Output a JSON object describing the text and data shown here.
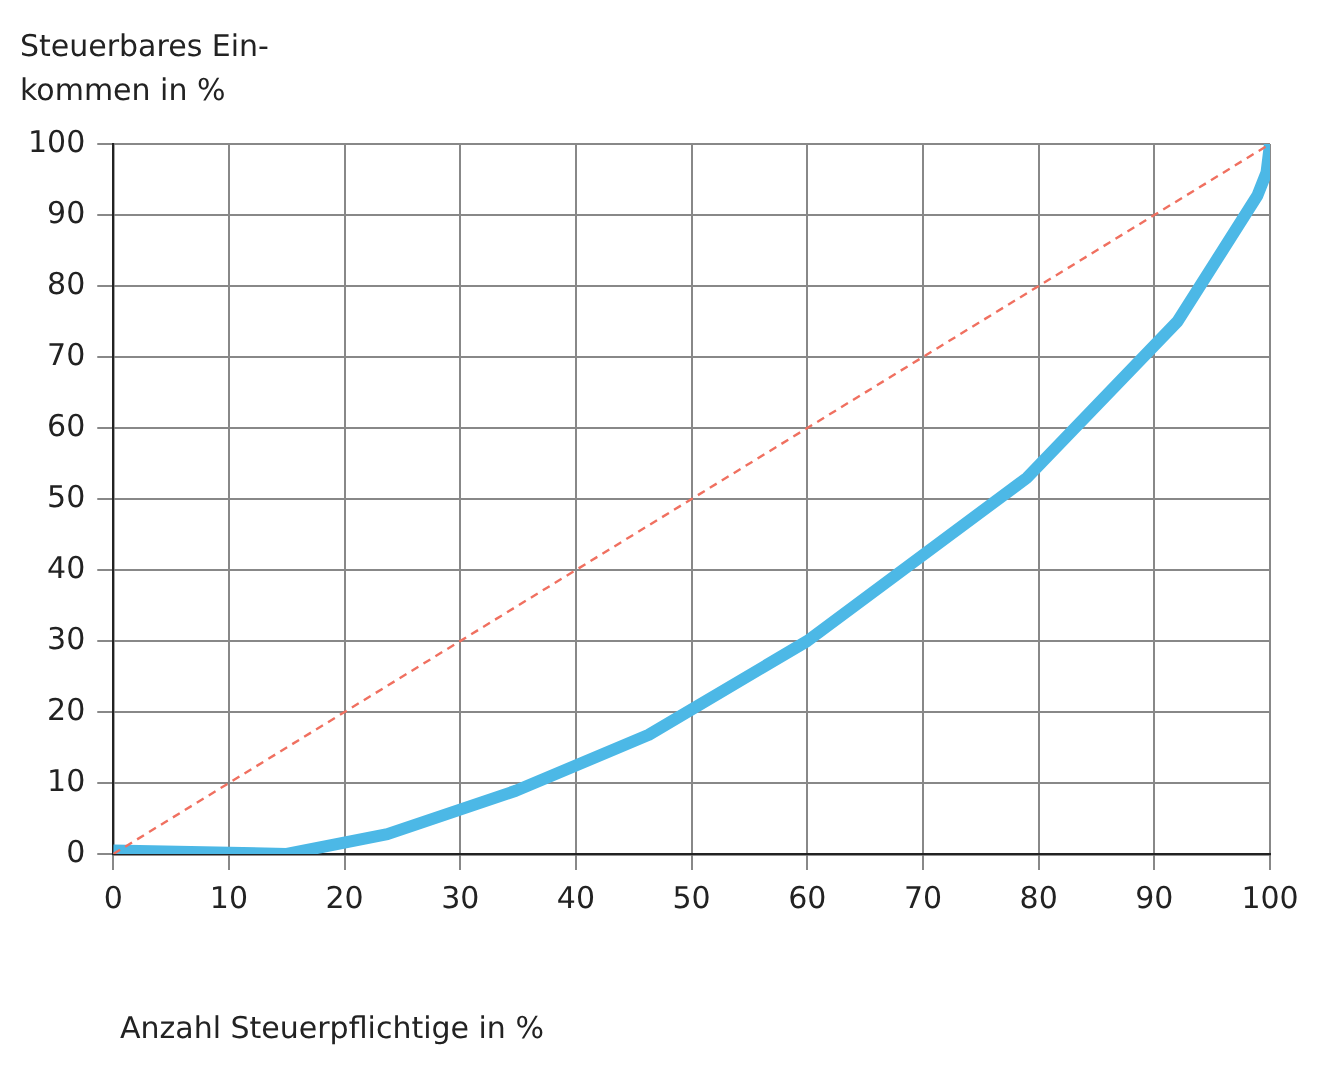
{
  "chart_data": {
    "type": "line",
    "ylabel": "Steuerbares Ein-\nkommen in %",
    "xlabel": "Anzahl Steuerpflichtige in %",
    "xlim": [
      0,
      100
    ],
    "xticks": [
      0,
      10,
      20,
      30,
      40,
      50,
      60,
      70,
      80,
      90,
      100
    ],
    "ylim": [
      0,
      100
    ],
    "yticks": [
      0,
      10,
      20,
      30,
      40,
      50,
      60,
      70,
      80,
      90,
      100
    ],
    "grid": true,
    "marker": "none",
    "series": [
      {
        "color": "#4cb8e6",
        "line_style": "solid",
        "x": [
          0,
          15,
          23.7,
          34.8,
          46.3,
          60,
          79,
          92,
          98.9,
          99.7,
          100
        ],
        "values": [
          0.5,
          0,
          2.8,
          8.9,
          16.8,
          30,
          53,
          75,
          92.7,
          96,
          100
        ]
      },
      {
        "color": "#f07060",
        "line_style": "dashed",
        "x": [
          0,
          100
        ],
        "values": [
          0,
          100
        ]
      }
    ]
  }
}
